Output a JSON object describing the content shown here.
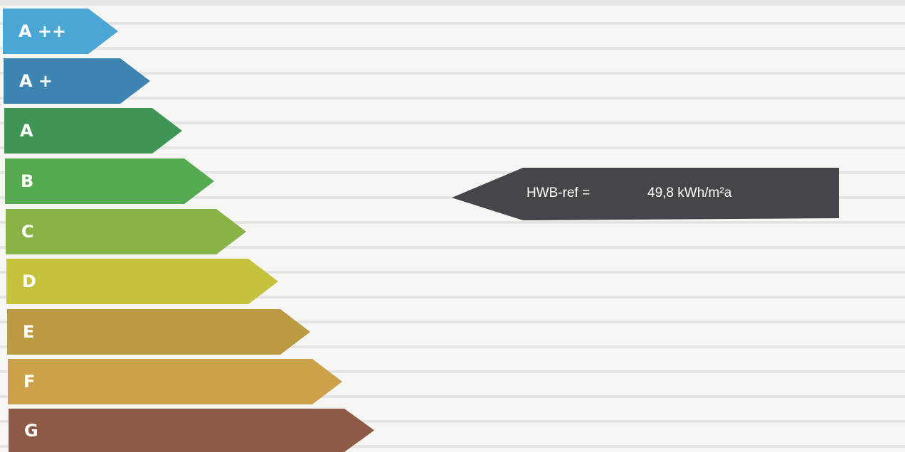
{
  "classes": [
    {
      "label": "A ++",
      "color": "#4aa6d4"
    },
    {
      "label": "A +",
      "color": "#3e84b3"
    },
    {
      "label": "A",
      "color": "#3f9654"
    },
    {
      "label": "B",
      "color": "#56ab50"
    },
    {
      "label": "C",
      "color": "#88b447"
    },
    {
      "label": "D",
      "color": "#c5c33d"
    },
    {
      "label": "E",
      "color": "#bb9a42"
    },
    {
      "label": "F",
      "color": "#cda04a"
    },
    {
      "label": "G",
      "color": "#8f5a45"
    }
  ],
  "indicator": {
    "label": "HWB-ref =",
    "value": "49,8 kWh/m²a",
    "color": "#48454a"
  }
}
